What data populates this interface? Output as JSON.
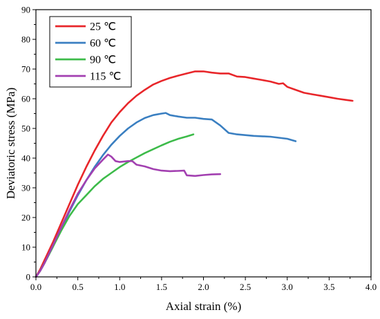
{
  "chart_data": {
    "type": "line",
    "xlabel": "Axial strain (%)",
    "ylabel": "Deviatoric stress (MPa)",
    "xlim": [
      0.0,
      4.0
    ],
    "ylim": [
      0,
      90
    ],
    "xticks": [
      "0.0",
      "0.5",
      "1.0",
      "1.5",
      "2.0",
      "2.5",
      "3.0",
      "3.5",
      "4.0"
    ],
    "yticks": [
      "0",
      "10",
      "20",
      "30",
      "40",
      "50",
      "60",
      "70",
      "80",
      "90"
    ],
    "legend_position": "top-left",
    "grid": false,
    "series": [
      {
        "name": "25 ℃",
        "color": "#e8262a",
        "x": [
          0.0,
          0.05,
          0.1,
          0.2,
          0.3,
          0.4,
          0.5,
          0.6,
          0.7,
          0.8,
          0.9,
          1.0,
          1.1,
          1.2,
          1.3,
          1.4,
          1.5,
          1.6,
          1.7,
          1.8,
          1.9,
          2.0,
          2.1,
          2.2,
          2.3,
          2.4,
          2.5,
          2.6,
          2.7,
          2.8,
          2.9,
          2.95,
          3.0,
          3.1,
          3.2,
          3.3,
          3.4,
          3.5,
          3.6,
          3.7,
          3.78
        ],
        "y": [
          0.0,
          2.5,
          5.5,
          11.5,
          18.0,
          24.5,
          31.0,
          37.0,
          42.5,
          47.5,
          52.0,
          55.5,
          58.5,
          61.0,
          63.0,
          64.8,
          66.0,
          67.0,
          67.8,
          68.5,
          69.2,
          69.2,
          68.8,
          68.5,
          68.5,
          67.5,
          67.3,
          66.8,
          66.3,
          65.8,
          65.0,
          65.2,
          64.0,
          63.0,
          62.0,
          61.5,
          61.0,
          60.5,
          60.0,
          59.6,
          59.3
        ]
      },
      {
        "name": "60 ℃",
        "color": "#3a7fc1",
        "x": [
          0.0,
          0.05,
          0.1,
          0.2,
          0.3,
          0.4,
          0.5,
          0.6,
          0.7,
          0.8,
          0.9,
          1.0,
          1.1,
          1.2,
          1.3,
          1.4,
          1.5,
          1.55,
          1.6,
          1.7,
          1.8,
          1.9,
          2.0,
          2.1,
          2.2,
          2.3,
          2.4,
          2.6,
          2.8,
          3.0,
          3.1
        ],
        "y": [
          0.0,
          2.0,
          4.5,
          10.0,
          16.0,
          22.0,
          27.5,
          32.5,
          37.0,
          41.0,
          44.5,
          47.5,
          50.0,
          52.0,
          53.5,
          54.5,
          55.0,
          55.2,
          54.5,
          54.0,
          53.6,
          53.6,
          53.2,
          53.0,
          51.0,
          48.5,
          48.0,
          47.5,
          47.2,
          46.5,
          45.7
        ]
      },
      {
        "name": "90 ℃",
        "color": "#3dbb4a",
        "x": [
          0.0,
          0.05,
          0.1,
          0.2,
          0.3,
          0.4,
          0.5,
          0.6,
          0.7,
          0.8,
          0.9,
          1.0,
          1.1,
          1.2,
          1.3,
          1.4,
          1.5,
          1.6,
          1.7,
          1.8,
          1.88
        ],
        "y": [
          0.0,
          2.0,
          4.5,
          10.0,
          15.5,
          20.5,
          24.5,
          27.5,
          30.5,
          33.0,
          35.0,
          37.0,
          38.7,
          40.2,
          41.7,
          43.0,
          44.3,
          45.5,
          46.5,
          47.3,
          48.0
        ]
      },
      {
        "name": "115 ℃",
        "color": "#a23fb0",
        "x": [
          0.0,
          0.05,
          0.1,
          0.2,
          0.3,
          0.4,
          0.5,
          0.6,
          0.7,
          0.8,
          0.86,
          0.9,
          0.95,
          1.0,
          1.1,
          1.15,
          1.2,
          1.3,
          1.4,
          1.5,
          1.6,
          1.7,
          1.77,
          1.8,
          1.9,
          2.0,
          2.1,
          2.2
        ],
        "y": [
          0.0,
          2.0,
          4.5,
          10.5,
          16.5,
          22.5,
          28.0,
          32.5,
          36.5,
          39.5,
          41.2,
          40.5,
          39.0,
          38.7,
          39.0,
          39.0,
          37.8,
          37.2,
          36.3,
          35.8,
          35.6,
          35.7,
          35.8,
          34.2,
          34.0,
          34.3,
          34.5,
          34.6
        ]
      }
    ]
  }
}
